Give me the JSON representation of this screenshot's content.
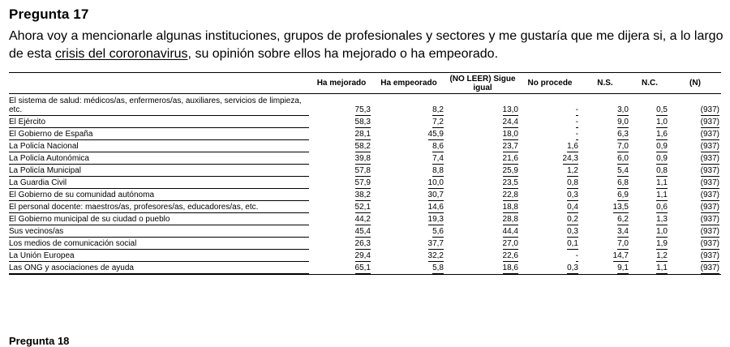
{
  "question": {
    "title": "Pregunta 17",
    "text_before": "Ahora voy a mencionarle algunas instituciones, grupos de profesionales y sectores y me gustaría que me dijera si, a lo largo de esta ",
    "text_underlined": "crisis del cororonavirus",
    "text_after": ", su opinión sobre ellos ha mejorado o ha empeorado."
  },
  "table": {
    "headers": [
      "",
      "Ha mejorado",
      "Ha empeorado",
      "(NO LEER) Sigue igual",
      "No procede",
      "N.S.",
      "N.C.",
      "(N)"
    ],
    "rows": [
      {
        "label": "El sistema de salud: médicos/as, enfermeros/as, auxiliares, servicios de limpieza, etc.",
        "values": [
          "75,3",
          "8,2",
          "13,0",
          "-",
          "3,0",
          "0,5",
          "(937)"
        ]
      },
      {
        "label": "El Ejército",
        "values": [
          "58,3",
          "7,2",
          "24,4",
          "-",
          "9,0",
          "1,0",
          "(937)"
        ]
      },
      {
        "label": "El Gobierno de España",
        "values": [
          "28,1",
          "45,9",
          "18,0",
          "-",
          "6,3",
          "1,6",
          "(937)"
        ]
      },
      {
        "label": "La Policía Nacional",
        "values": [
          "58,2",
          "8,6",
          "23,7",
          "1,6",
          "7,0",
          "0,9",
          "(937)"
        ]
      },
      {
        "label": "La Policía Autonómica",
        "values": [
          "39,8",
          "7,4",
          "21,6",
          "24,3",
          "6,0",
          "0,9",
          "(937)"
        ]
      },
      {
        "label": "La Policía Municipal",
        "values": [
          "57,8",
          "8,8",
          "25,9",
          "1,2",
          "5,4",
          "0,8",
          "(937)"
        ]
      },
      {
        "label": "La Guardia Civil",
        "values": [
          "57,9",
          "10,0",
          "23,5",
          "0,8",
          "6,8",
          "1,1",
          "(937)"
        ]
      },
      {
        "label": "El Gobierno de su comunidad autónoma",
        "values": [
          "38,2",
          "30,7",
          "22,8",
          "0,3",
          "6,9",
          "1,1",
          "(937)"
        ]
      },
      {
        "label": "El personal docente: maestros/as, profesores/as, educadores/as, etc.",
        "values": [
          "52,1",
          "14,6",
          "18,8",
          "0,4",
          "13,5",
          "0,6",
          "(937)"
        ]
      },
      {
        "label": "El Gobierno municipal de su ciudad o pueblo",
        "values": [
          "44,2",
          "19,3",
          "28,8",
          "0,2",
          "6,2",
          "1,3",
          "(937)"
        ]
      },
      {
        "label": "Sus vecinos/as",
        "values": [
          "45,4",
          "5,6",
          "44,4",
          "0,3",
          "3,4",
          "1,0",
          "(937)"
        ]
      },
      {
        "label": "Los medios de comunicación social",
        "values": [
          "26,3",
          "37,7",
          "27,0",
          "0,1",
          "7,0",
          "1,9",
          "(937)"
        ]
      },
      {
        "label": "La Unión Europea",
        "values": [
          "29,4",
          "32,2",
          "22,6",
          "-",
          "14,7",
          "1,2",
          "(937)"
        ]
      },
      {
        "label": "Las ONG y asociaciones de ayuda",
        "values": [
          "65,1",
          "5,8",
          "18,6",
          "0,3",
          "9,1",
          "1,1",
          "(937)"
        ]
      }
    ]
  },
  "next_heading": "Pregunta 18"
}
